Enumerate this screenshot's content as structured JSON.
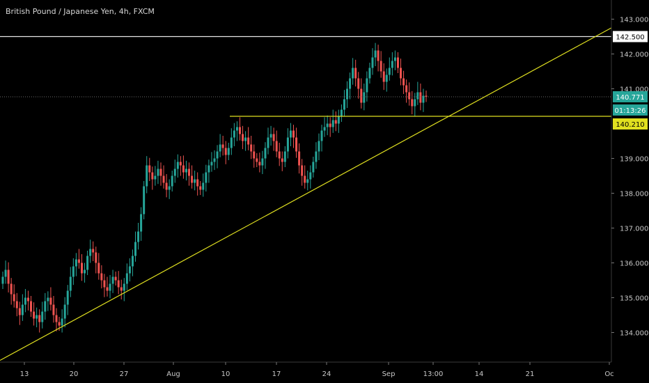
{
  "header": {
    "title": "British Pound / Japanese Yen, 4h, FXCM"
  },
  "colors": {
    "background": "#000000",
    "up": "#26a69a",
    "down": "#ef5350",
    "trend": "#e0e020",
    "resistance": "#e6e6e6",
    "axis_text": "#c8c8c8",
    "price_tag": "#26a69a"
  },
  "chart_data": {
    "type": "candlestick",
    "symbol": "GBPJPY",
    "timeframe": "4h",
    "y_axis": {
      "ticks": [
        "143.000",
        "142.000",
        "141.000",
        "139.000",
        "138.000",
        "137.000",
        "136.000",
        "135.000",
        "134.000"
      ],
      "ylim": [
        133.15,
        143.55
      ]
    },
    "x_axis": {
      "ticks": [
        "13",
        "20",
        "27",
        "Aug",
        "10",
        "17",
        "24",
        "Sep",
        "13:00",
        "14",
        "21",
        "Oc"
      ]
    },
    "price_tags": {
      "resistance": "142.500",
      "current": "140.771",
      "countdown": "01:13:26",
      "support": "140.210"
    },
    "levels": {
      "resistance": 142.5,
      "support": 140.21,
      "current": 140.771
    },
    "trendline": {
      "from_price": 133.2,
      "to_price": 142.75
    },
    "series": {
      "close": [
        135.6,
        135.8,
        135.4,
        135.1,
        134.9,
        134.7,
        134.5,
        134.8,
        135.0,
        134.9,
        134.6,
        134.4,
        134.5,
        134.3,
        134.6,
        134.9,
        135.0,
        134.8,
        134.5,
        134.3,
        134.2,
        134.4,
        134.8,
        135.2,
        135.6,
        135.9,
        136.1,
        136.0,
        135.7,
        135.8,
        136.2,
        136.4,
        136.3,
        136.0,
        135.7,
        135.5,
        135.3,
        135.2,
        135.4,
        135.6,
        135.5,
        135.3,
        135.2,
        135.4,
        135.7,
        135.9,
        136.2,
        136.6,
        136.9,
        137.4,
        138.2,
        138.8,
        138.6,
        138.4,
        138.5,
        138.7,
        138.5,
        138.3,
        138.1,
        138.2,
        138.5,
        138.7,
        138.9,
        138.8,
        138.6,
        138.7,
        138.5,
        138.3,
        138.4,
        138.2,
        138.1,
        138.3,
        138.6,
        138.8,
        138.9,
        139.0,
        139.2,
        139.4,
        139.3,
        139.1,
        139.3,
        139.6,
        139.8,
        139.9,
        139.7,
        139.5,
        139.6,
        139.4,
        139.2,
        139.0,
        138.9,
        138.8,
        139.0,
        139.3,
        139.6,
        139.7,
        139.5,
        139.2,
        139.0,
        138.9,
        139.2,
        139.6,
        139.8,
        139.6,
        139.2,
        138.8,
        138.5,
        138.3,
        138.4,
        138.6,
        138.9,
        139.2,
        139.5,
        139.8,
        139.9,
        140.0,
        139.9,
        140.1,
        140.0,
        140.2,
        140.4,
        140.7,
        141.0,
        141.3,
        141.6,
        141.3,
        141.0,
        140.6,
        140.9,
        141.3,
        141.6,
        141.9,
        142.1,
        141.8,
        141.5,
        141.2,
        141.4,
        141.6,
        141.8,
        141.9,
        141.6,
        141.3,
        141.1,
        140.9,
        140.7,
        140.5,
        140.7,
        140.9,
        140.6,
        140.8,
        140.77
      ]
    }
  }
}
